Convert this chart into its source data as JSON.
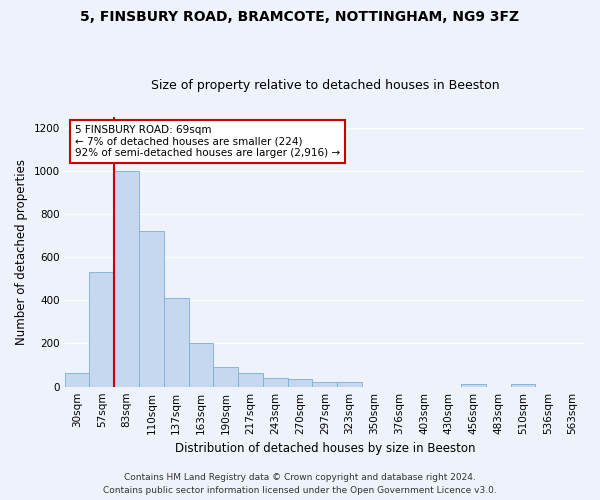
{
  "title1": "5, FINSBURY ROAD, BRAMCOTE, NOTTINGHAM, NG9 3FZ",
  "title2": "Size of property relative to detached houses in Beeston",
  "xlabel": "Distribution of detached houses by size in Beeston",
  "ylabel": "Number of detached properties",
  "categories": [
    "30sqm",
    "57sqm",
    "83sqm",
    "110sqm",
    "137sqm",
    "163sqm",
    "190sqm",
    "217sqm",
    "243sqm",
    "270sqm",
    "297sqm",
    "323sqm",
    "350sqm",
    "376sqm",
    "403sqm",
    "430sqm",
    "456sqm",
    "483sqm",
    "510sqm",
    "536sqm",
    "563sqm"
  ],
  "values": [
    65,
    530,
    1000,
    720,
    410,
    200,
    90,
    62,
    40,
    35,
    20,
    20,
    0,
    0,
    0,
    0,
    12,
    0,
    12,
    0,
    0
  ],
  "bar_color": "#c5d8f0",
  "bar_edge_color": "#7bafd4",
  "property_line_x": 1.5,
  "annotation_text": "5 FINSBURY ROAD: 69sqm\n← 7% of detached houses are smaller (224)\n92% of semi-detached houses are larger (2,916) →",
  "annotation_box_color": "#ffffff",
  "annotation_box_edge": "#cc0000",
  "red_line_color": "#cc0000",
  "ylim": [
    0,
    1250
  ],
  "yticks": [
    0,
    200,
    400,
    600,
    800,
    1000,
    1200
  ],
  "footer1": "Contains HM Land Registry data © Crown copyright and database right 2024.",
  "footer2": "Contains public sector information licensed under the Open Government Licence v3.0.",
  "background_color": "#eef2fa",
  "grid_color": "#ffffff",
  "title_fontsize": 10,
  "subtitle_fontsize": 9,
  "label_fontsize": 8.5,
  "tick_fontsize": 7.5,
  "footer_fontsize": 6.5
}
